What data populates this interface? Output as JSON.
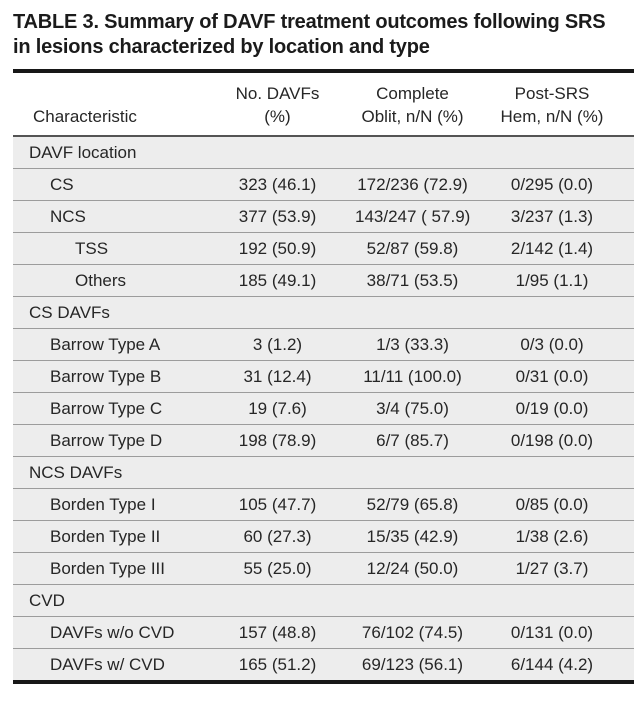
{
  "title": {
    "lines": [
      "TABLE 3. Summary of DAVF treatment outcomes following SRS",
      "in lesions characterized by location and type"
    ]
  },
  "table": {
    "columns": [
      {
        "line1": "",
        "line2": "Characteristic"
      },
      {
        "line1": "No. DAVFs",
        "line2": "(%)"
      },
      {
        "line1": "Complete",
        "line2": "Oblit, n/N (%)"
      },
      {
        "line1": "Post-SRS",
        "line2": "Hem, n/N (%)"
      }
    ],
    "rows": [
      {
        "type": "section",
        "indent": 0,
        "label": "DAVF location",
        "values": []
      },
      {
        "type": "data",
        "indent": 1,
        "label": "CS",
        "values": [
          "323 (46.1)",
          "172/236 (72.9)",
          "0/295 (0.0)"
        ]
      },
      {
        "type": "data",
        "indent": 1,
        "label": "NCS",
        "values": [
          "377 (53.9)",
          "143/247 ( 57.9)",
          "3/237 (1.3)"
        ]
      },
      {
        "type": "data",
        "indent": 2,
        "label": "TSS",
        "values": [
          "192 (50.9)",
          "52/87 (59.8)",
          "2/142 (1.4)"
        ]
      },
      {
        "type": "data",
        "indent": 2,
        "label": "Others",
        "values": [
          "185 (49.1)",
          "38/71 (53.5)",
          "1/95 (1.1)"
        ]
      },
      {
        "type": "section",
        "indent": 0,
        "label": "CS DAVFs",
        "values": []
      },
      {
        "type": "data",
        "indent": 1,
        "label": "Barrow Type A",
        "values": [
          "3 (1.2)",
          "1/3 (33.3)",
          "0/3 (0.0)"
        ]
      },
      {
        "type": "data",
        "indent": 1,
        "label": "Barrow Type B",
        "values": [
          "31 (12.4)",
          "11/11 (100.0)",
          "0/31 (0.0)"
        ]
      },
      {
        "type": "data",
        "indent": 1,
        "label": "Barrow Type C",
        "values": [
          "19 (7.6)",
          "3/4 (75.0)",
          "0/19 (0.0)"
        ]
      },
      {
        "type": "data",
        "indent": 1,
        "label": "Barrow Type D",
        "values": [
          "198 (78.9)",
          "6/7 (85.7)",
          "0/198 (0.0)"
        ]
      },
      {
        "type": "section",
        "indent": 0,
        "label": "NCS DAVFs",
        "values": []
      },
      {
        "type": "data",
        "indent": 1,
        "label": "Borden Type I",
        "values": [
          "105 (47.7)",
          "52/79 (65.8)",
          "0/85 (0.0)"
        ]
      },
      {
        "type": "data",
        "indent": 1,
        "label": "Borden Type II",
        "values": [
          "60 (27.3)",
          "15/35 (42.9)",
          "1/38 (2.6)"
        ]
      },
      {
        "type": "data",
        "indent": 1,
        "label": "Borden Type III",
        "values": [
          "55 (25.0)",
          "12/24 (50.0)",
          "1/27 (3.7)"
        ]
      },
      {
        "type": "section",
        "indent": 0,
        "label": "CVD",
        "values": []
      },
      {
        "type": "data",
        "indent": 1,
        "label": "DAVFs w/o CVD",
        "values": [
          "157 (48.8)",
          "76/102 (74.5)",
          "0/131 (0.0)"
        ]
      },
      {
        "type": "data",
        "indent": 1,
        "label": "DAVFs w/ CVD",
        "values": [
          "165 (51.2)",
          "69/123 (56.1)",
          "6/144 (4.2)"
        ]
      }
    ]
  },
  "colors": {
    "row_background": "#EDEDED",
    "row_separator": "#9C9C9C",
    "heavy_rule": "#171717",
    "header_rule": "#545454",
    "text": "#262626"
  }
}
